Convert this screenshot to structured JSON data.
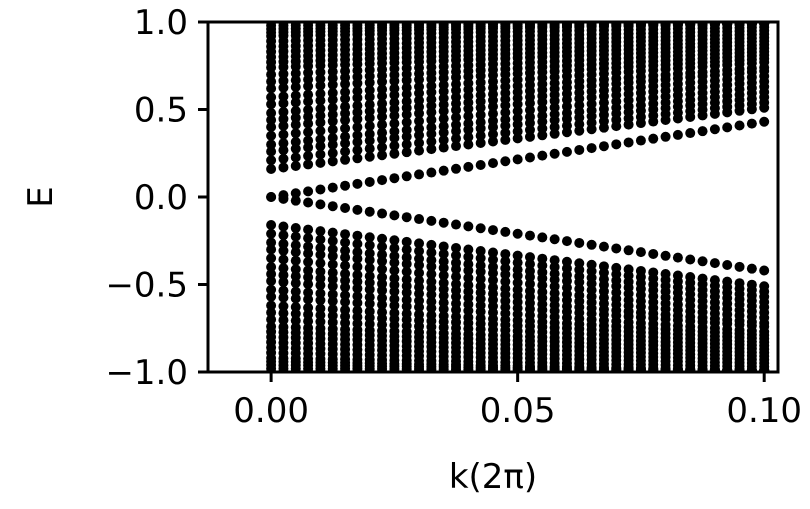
{
  "chart_data": {
    "type": "scatter",
    "title": "",
    "xlabel": "k(2π)",
    "ylabel": "E",
    "xlim": [
      -0.0128,
      0.1028
    ],
    "ylim": [
      -1.0,
      1.0
    ],
    "xticks": [
      0.0,
      0.05,
      0.1
    ],
    "xtick_labels": [
      "0.00",
      "0.05",
      "0.10"
    ],
    "yticks": [
      -1.0,
      -0.5,
      0.0,
      0.5,
      1.0
    ],
    "ytick_labels": [
      "−1.0",
      "−0.5",
      "0.0",
      "0.5",
      "1.0"
    ],
    "grid": false,
    "marker_color": "#000000",
    "k_range": [
      0.0,
      0.1
    ],
    "k_samples": 41,
    "series": [
      {
        "role": "band",
        "values_at_k0": [
          0.0,
          0.0
        ],
        "values_at_kmax": [
          0.43,
          -0.42
        ]
      },
      {
        "role": "bulk_upper",
        "values_at_k0": [
          0.16,
          0.21,
          0.26,
          0.3,
          0.35,
          0.4,
          0.44,
          0.48,
          0.53,
          0.57,
          0.62,
          0.66,
          0.7,
          0.74,
          0.77,
          0.8,
          0.83,
          0.86,
          0.89,
          0.92,
          0.94,
          0.96,
          0.98,
          1.0
        ],
        "values_at_kmax": [
          0.51,
          0.54,
          0.57,
          0.6,
          0.63,
          0.66,
          0.69,
          0.72,
          0.74,
          0.77,
          0.79,
          0.81,
          0.83,
          0.85,
          0.87,
          0.89,
          0.91,
          0.93,
          0.95,
          0.97,
          0.99
        ]
      },
      {
        "role": "bulk_lower",
        "values_at_k0": [
          -0.16,
          -0.21,
          -0.26,
          -0.3,
          -0.35,
          -0.4,
          -0.44,
          -0.48,
          -0.53,
          -0.57,
          -0.62,
          -0.66,
          -0.7,
          -0.74,
          -0.77,
          -0.8,
          -0.83,
          -0.86,
          -0.89,
          -0.92,
          -0.94,
          -0.96,
          -0.98,
          -1.0
        ],
        "values_at_kmax": [
          -0.51,
          -0.54,
          -0.57,
          -0.6,
          -0.63,
          -0.66,
          -0.69,
          -0.72,
          -0.74,
          -0.77,
          -0.79,
          -0.81,
          -0.83,
          -0.85,
          -0.87,
          -0.89,
          -0.91,
          -0.93,
          -0.95,
          -0.97,
          -0.99
        ]
      }
    ]
  }
}
